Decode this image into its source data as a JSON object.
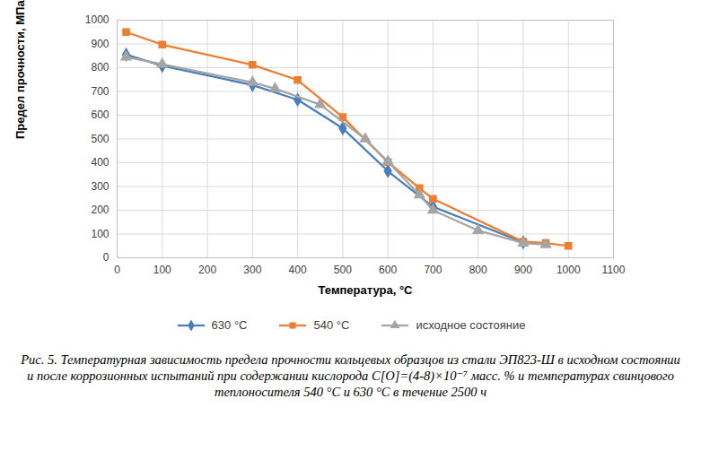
{
  "chart_data": {
    "type": "line",
    "caption": "Рис. 5. Температурная зависимость предела прочности кольцевых образцов из стали ЭП823-Ш в исходном состоянии и после коррозионных испытаний при содержании кислорода С[O]=(4-8)×10⁻⁷ масс. % и температурах свинцового теплоносителя 540 °С и 630 °С в течение 2500 ч",
    "x_label": "Температура, °С",
    "y_label": "Предел прочности, МПа",
    "series": [
      {
        "name": "630 °С",
        "color": "#4a7ebb",
        "marker": "diamond",
        "x": [
          20,
          100,
          300,
          400,
          500,
          600,
          700,
          900
        ],
        "values": [
          855,
          808,
          727,
          665,
          545,
          365,
          215,
          65
        ]
      },
      {
        "name": "540 °С",
        "color": "#ed7d31",
        "marker": "square",
        "x": [
          20,
          100,
          300,
          400,
          500,
          600,
          670,
          700,
          900,
          950,
          1000
        ],
        "values": [
          950,
          897,
          812,
          748,
          592,
          403,
          293,
          248,
          68,
          62,
          50
        ]
      },
      {
        "name": "исходное состояние",
        "color": "#a5a5a5",
        "marker": "triangle",
        "x": [
          20,
          100,
          300,
          350,
          450,
          550,
          600,
          670,
          700,
          800,
          900,
          950
        ],
        "values": [
          845,
          815,
          738,
          712,
          645,
          500,
          405,
          265,
          200,
          115,
          62,
          55
        ]
      }
    ],
    "xlim": [
      0,
      1100
    ],
    "xticks": [
      0,
      100,
      200,
      300,
      400,
      500,
      600,
      700,
      800,
      900,
      1000,
      1100
    ],
    "ylim": [
      0,
      1000
    ],
    "yticks": [
      0,
      100,
      200,
      300,
      400,
      500,
      600,
      700,
      800,
      900,
      1000
    ],
    "grid": true,
    "legend": "bottom"
  }
}
